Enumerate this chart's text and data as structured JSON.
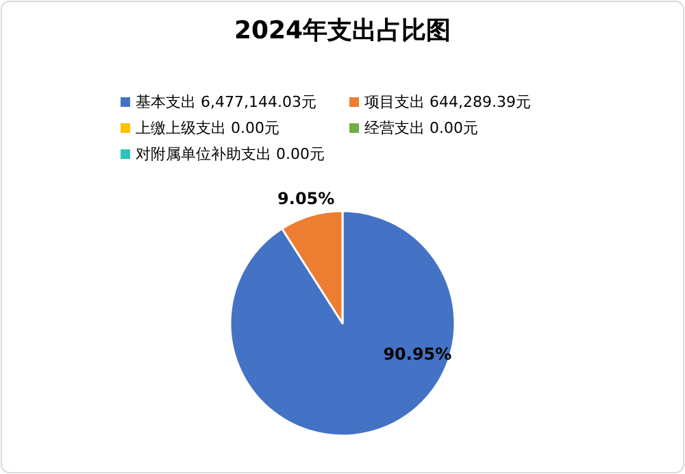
{
  "chart_data": {
    "type": "pie",
    "title": "2024年支出占比图",
    "categories": [
      "基本支出 6,477,144.03元",
      "项目支出 644,289.39元",
      "上缴上级支出 0.00元",
      "经营支出 0.00元",
      "对附属单位补助支出 0.00元"
    ],
    "values": [
      90.95,
      9.05,
      0,
      0,
      0
    ],
    "colors": [
      "#4472c4",
      "#ed7d31",
      "#ffc000",
      "#70ad47",
      "#2fc2b8"
    ],
    "value_labels": [
      "90.95%",
      "9.05%",
      null,
      null,
      null
    ],
    "legend": "top"
  }
}
